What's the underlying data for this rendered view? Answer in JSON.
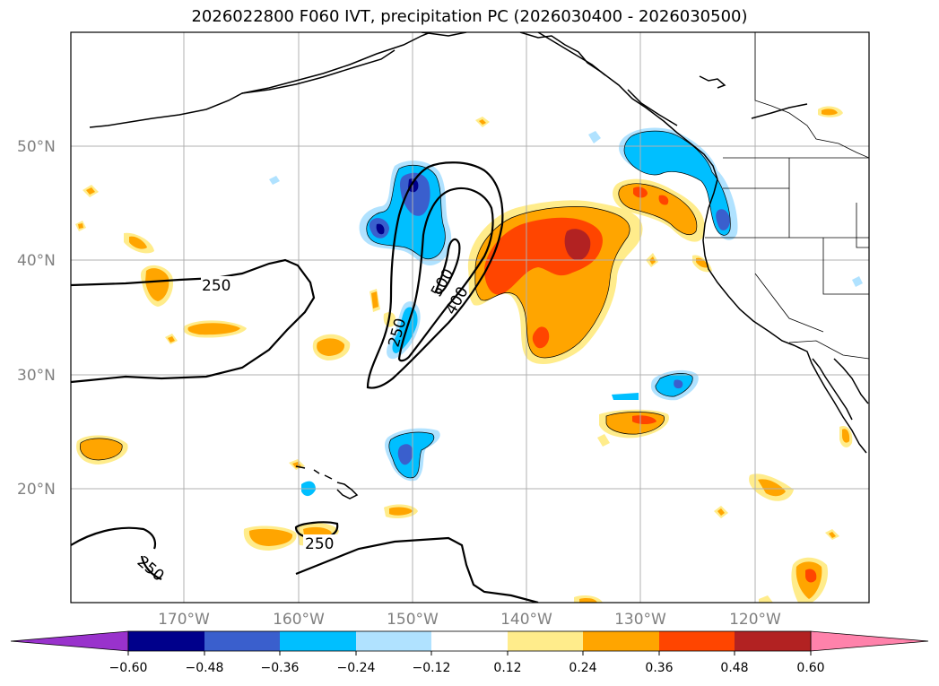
{
  "title": "2026022800 F060 IVT, precipitation PC (2026030400 - 2026030500)",
  "lat_labels": [
    "50°N",
    "40°N",
    "30°N",
    "20°N"
  ],
  "lon_labels": [
    "170°W",
    "160°W",
    "150°W",
    "140°W",
    "130°W",
    "120°W"
  ],
  "colorbar": {
    "ticks": [
      "−0.60",
      "−0.48",
      "−0.36",
      "−0.24",
      "−0.12",
      "0.12",
      "0.24",
      "0.36",
      "0.48",
      "0.60"
    ],
    "colors": [
      "#9932cc",
      "#00008b",
      "#3a5fcd",
      "#00bfff",
      "#b0e2ff",
      "#ffffff",
      "#ffec8b",
      "#ffa500",
      "#ff4500",
      "#b22222",
      "#ff82ab"
    ]
  },
  "contour_labels": {
    "c250_west": "250",
    "c250_center": "250",
    "c250_south": "250",
    "c250_sw": "250",
    "c500": "500",
    "c400": "400"
  }
}
